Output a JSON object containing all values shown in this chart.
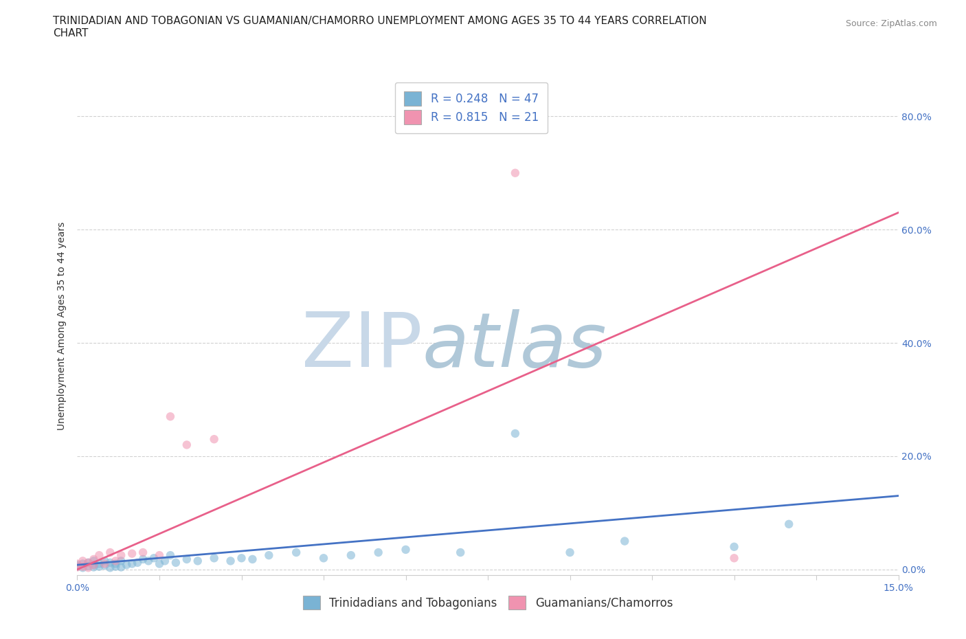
{
  "title_line1": "TRINIDADIAN AND TOBAGONIAN VS GUAMANIAN/CHAMORRO UNEMPLOYMENT AMONG AGES 35 TO 44 YEARS CORRELATION",
  "title_line2": "CHART",
  "source": "Source: ZipAtlas.com",
  "ylabel_label": "Unemployment Among Ages 35 to 44 years",
  "right_yticks": [
    0.0,
    0.2,
    0.4,
    0.6,
    0.8
  ],
  "right_ytick_labels": [
    "0.0%",
    "20.0%",
    "40.0%",
    "60.0%",
    "80.0%"
  ],
  "xlim": [
    0.0,
    0.15
  ],
  "ylim": [
    -0.01,
    0.87
  ],
  "legend_entry_blue": "R = 0.248   N = 47",
  "legend_entry_pink": "R = 0.815   N = 21",
  "bottom_legend_blue": "Trinidadians and Tobagonians",
  "bottom_legend_pink": "Guamanians/Chamorros",
  "blue_scatter_x": [
    0.0,
    0.0,
    0.001,
    0.001,
    0.002,
    0.002,
    0.003,
    0.003,
    0.003,
    0.004,
    0.004,
    0.005,
    0.005,
    0.006,
    0.006,
    0.007,
    0.007,
    0.008,
    0.008,
    0.009,
    0.01,
    0.011,
    0.012,
    0.013,
    0.014,
    0.015,
    0.016,
    0.017,
    0.018,
    0.02,
    0.022,
    0.025,
    0.028,
    0.03,
    0.032,
    0.035,
    0.04,
    0.045,
    0.05,
    0.055,
    0.06,
    0.07,
    0.08,
    0.09,
    0.1,
    0.12,
    0.13
  ],
  "blue_scatter_y": [
    0.005,
    0.008,
    0.003,
    0.01,
    0.006,
    0.012,
    0.004,
    0.008,
    0.015,
    0.005,
    0.01,
    0.007,
    0.015,
    0.003,
    0.012,
    0.005,
    0.01,
    0.004,
    0.015,
    0.008,
    0.01,
    0.012,
    0.018,
    0.015,
    0.02,
    0.01,
    0.015,
    0.025,
    0.012,
    0.018,
    0.015,
    0.02,
    0.015,
    0.02,
    0.018,
    0.025,
    0.03,
    0.02,
    0.025,
    0.03,
    0.035,
    0.03,
    0.24,
    0.03,
    0.05,
    0.04,
    0.08
  ],
  "pink_scatter_x": [
    0.0,
    0.0,
    0.001,
    0.001,
    0.002,
    0.002,
    0.003,
    0.003,
    0.004,
    0.005,
    0.006,
    0.007,
    0.008,
    0.01,
    0.012,
    0.015,
    0.017,
    0.02,
    0.025,
    0.08,
    0.12
  ],
  "pink_scatter_y": [
    0.004,
    0.01,
    0.005,
    0.015,
    0.003,
    0.012,
    0.008,
    0.018,
    0.025,
    0.01,
    0.03,
    0.015,
    0.025,
    0.028,
    0.03,
    0.025,
    0.27,
    0.22,
    0.23,
    0.7,
    0.02
  ],
  "blue_line_x": [
    0.0,
    0.15
  ],
  "blue_line_y": [
    0.008,
    0.13
  ],
  "pink_line_x": [
    0.0,
    0.15
  ],
  "pink_line_y": [
    0.0,
    0.63
  ],
  "grid_color": "#cccccc",
  "scatter_alpha": 0.55,
  "scatter_size": 80,
  "blue_color": "#7ab3d4",
  "pink_color": "#f093b0",
  "blue_line_color": "#4472c4",
  "pink_line_color": "#e8608a",
  "watermark_zip": "ZIP",
  "watermark_atlas": "atlas",
  "watermark_color_zip": "#c8d8e8",
  "watermark_color_atlas": "#b0c8d8",
  "watermark_fontsize": 80,
  "title_fontsize": 11,
  "axis_label_fontsize": 10,
  "tick_fontsize": 10,
  "legend_fontsize": 12
}
